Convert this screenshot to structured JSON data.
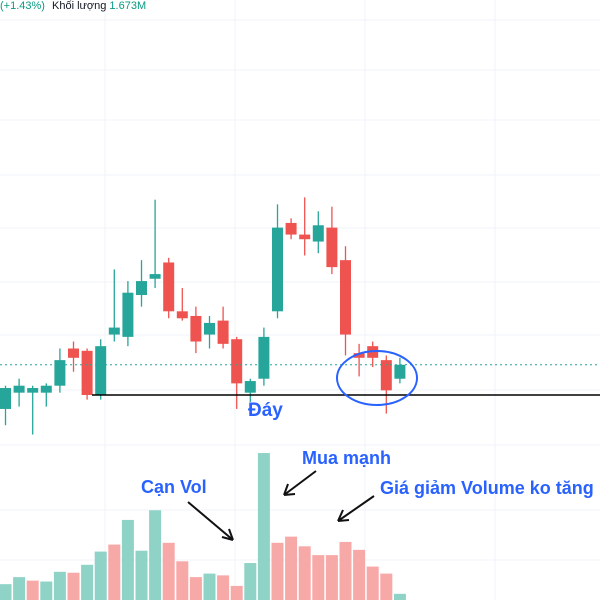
{
  "header": {
    "change_text": "(+1.43%)",
    "volume_label": "Khối lượng",
    "volume_value": "1.673M"
  },
  "annotations": {
    "bottom": "Đáy",
    "low_volume": "Cạn Vol",
    "strong_buy": "Mua mạnh",
    "price_down_volume_flat": "Giá giảm Volume ko tăng"
  },
  "colors": {
    "up": "#26a69a",
    "down": "#ef5350",
    "up_volume": "#8fd3c7",
    "down_volume": "#f7a9a7",
    "annotation": "#2962ff",
    "support_line": "#000000"
  },
  "chart_data": {
    "type": "candlestick",
    "title": "",
    "support_level": 100,
    "candles": [
      {
        "o": 97.0,
        "h": 102.0,
        "l": 93.5,
        "c": 101.5
      },
      {
        "o": 100.5,
        "h": 103.5,
        "l": 97.5,
        "c": 102.0
      },
      {
        "o": 100.5,
        "h": 102.0,
        "l": 91.5,
        "c": 101.5
      },
      {
        "o": 100.5,
        "h": 102.5,
        "l": 97.5,
        "c": 102.0
      },
      {
        "o": 102.0,
        "h": 110.0,
        "l": 100.5,
        "c": 107.5
      },
      {
        "o": 110.0,
        "h": 111.5,
        "l": 105.0,
        "c": 108.0
      },
      {
        "o": 109.5,
        "h": 110.0,
        "l": 99.0,
        "c": 100.0
      },
      {
        "o": 100.0,
        "h": 112.0,
        "l": 99.0,
        "c": 110.5
      },
      {
        "o": 113.0,
        "h": 127.0,
        "l": 111.5,
        "c": 114.5
      },
      {
        "o": 112.5,
        "h": 124.5,
        "l": 110.5,
        "c": 122.0
      },
      {
        "o": 121.5,
        "h": 129.0,
        "l": 119.0,
        "c": 124.5
      },
      {
        "o": 125.0,
        "h": 142.0,
        "l": 123.0,
        "c": 126.0
      },
      {
        "o": 128.5,
        "h": 129.5,
        "l": 116.5,
        "c": 118.0
      },
      {
        "o": 118.0,
        "h": 123.0,
        "l": 116.0,
        "c": 116.5
      },
      {
        "o": 117.0,
        "h": 119.0,
        "l": 109.0,
        "c": 111.5
      },
      {
        "o": 113.0,
        "h": 117.0,
        "l": 110.0,
        "c": 115.5
      },
      {
        "o": 116.0,
        "h": 119.0,
        "l": 110.0,
        "c": 111.0
      },
      {
        "o": 112.0,
        "h": 112.5,
        "l": 97.0,
        "c": 102.5
      },
      {
        "o": 100.5,
        "h": 103.5,
        "l": 98.5,
        "c": 103.0
      },
      {
        "o": 103.5,
        "h": 114.5,
        "l": 102.0,
        "c": 112.5
      },
      {
        "o": 118.0,
        "h": 141.0,
        "l": 116.5,
        "c": 136.0
      },
      {
        "o": 137.0,
        "h": 138.0,
        "l": 133.5,
        "c": 134.5
      },
      {
        "o": 134.5,
        "h": 142.5,
        "l": 130.0,
        "c": 133.5
      },
      {
        "o": 133.0,
        "h": 139.5,
        "l": 130.5,
        "c": 136.5
      },
      {
        "o": 136.0,
        "h": 140.5,
        "l": 126.0,
        "c": 127.5
      },
      {
        "o": 129.0,
        "h": 132.0,
        "l": 108.5,
        "c": 113.0
      },
      {
        "o": 109.0,
        "h": 111.0,
        "l": 104.0,
        "c": 108.0
      },
      {
        "o": 110.5,
        "h": 111.5,
        "l": 106.0,
        "c": 108.0
      },
      {
        "o": 107.5,
        "h": 108.5,
        "l": 96.0,
        "c": 101.0
      },
      {
        "o": 103.5,
        "h": 108.0,
        "l": 102.5,
        "c": 106.5
      }
    ],
    "volumes": [
      {
        "v": 0.18,
        "dir": "up"
      },
      {
        "v": 0.26,
        "dir": "up"
      },
      {
        "v": 0.22,
        "dir": "down"
      },
      {
        "v": 0.21,
        "dir": "up"
      },
      {
        "v": 0.32,
        "dir": "up"
      },
      {
        "v": 0.31,
        "dir": "down"
      },
      {
        "v": 0.4,
        "dir": "up"
      },
      {
        "v": 0.55,
        "dir": "up"
      },
      {
        "v": 0.63,
        "dir": "down"
      },
      {
        "v": 0.91,
        "dir": "up"
      },
      {
        "v": 0.56,
        "dir": "up"
      },
      {
        "v": 1.02,
        "dir": "up"
      },
      {
        "v": 0.65,
        "dir": "down"
      },
      {
        "v": 0.44,
        "dir": "down"
      },
      {
        "v": 0.26,
        "dir": "down"
      },
      {
        "v": 0.3,
        "dir": "up"
      },
      {
        "v": 0.28,
        "dir": "down"
      },
      {
        "v": 0.16,
        "dir": "down"
      },
      {
        "v": 0.42,
        "dir": "up"
      },
      {
        "v": 1.67,
        "dir": "up"
      },
      {
        "v": 0.65,
        "dir": "down"
      },
      {
        "v": 0.72,
        "dir": "down"
      },
      {
        "v": 0.61,
        "dir": "down"
      },
      {
        "v": 0.51,
        "dir": "down"
      },
      {
        "v": 0.51,
        "dir": "down"
      },
      {
        "v": 0.66,
        "dir": "down"
      },
      {
        "v": 0.57,
        "dir": "down"
      },
      {
        "v": 0.38,
        "dir": "down"
      },
      {
        "v": 0.3,
        "dir": "down"
      },
      {
        "v": 0.07,
        "dir": "up"
      }
    ]
  }
}
